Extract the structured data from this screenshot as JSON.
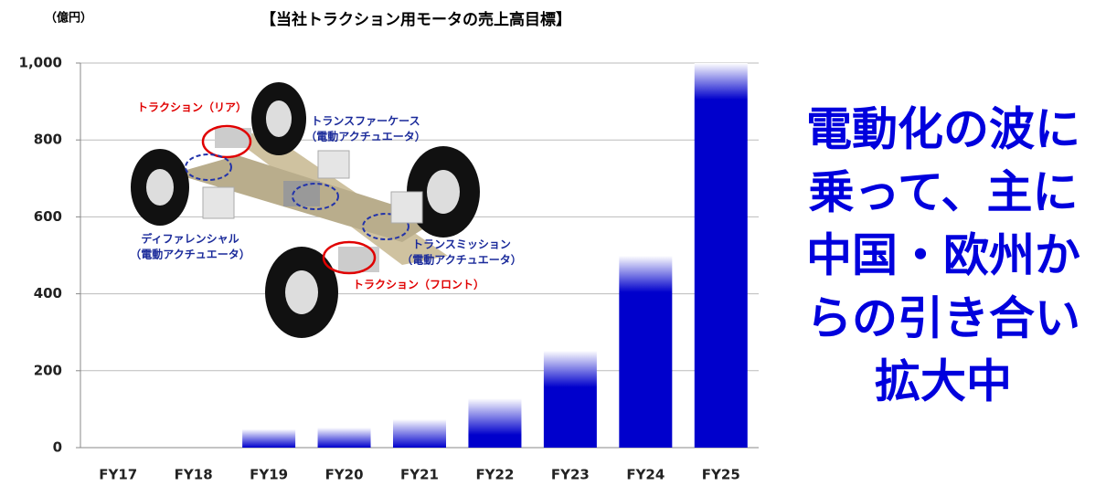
{
  "chart_data": {
    "type": "bar",
    "title": "【当社トラクション用モータの売上高目標】",
    "y_unit_label": "（億円）",
    "categories": [
      "FY17",
      "FY18",
      "FY19",
      "FY20",
      "FY21",
      "FY22",
      "FY23",
      "FY24",
      "FY25"
    ],
    "values": [
      0,
      0,
      48,
      52,
      74,
      128,
      252,
      499,
      1000
    ],
    "color": "#0000cc",
    "ylim": [
      0,
      1000
    ],
    "yticks": [
      0,
      200,
      400,
      600,
      800,
      {
        "value": 1000,
        "label": "1,000"
      }
    ],
    "grid": true,
    "annotation_lines": [
      "電動化の波に",
      "乗って、主に",
      "中国・欧州か",
      "らの引き合い",
      "拡大中"
    ],
    "annotation_color": "#0000dd",
    "diagram_labels": [
      {
        "lines": [
          "トラクション（リア）"
        ],
        "color": "#e00000"
      },
      {
        "lines": [
          "トランスファーケース",
          "（電動アクチュエータ）"
        ],
        "color": "#1a2a9a"
      },
      {
        "lines": [
          "ディファレンシャル",
          "（電動アクチュエータ）"
        ],
        "color": "#1a2a9a"
      },
      {
        "lines": [
          "トランスミッション",
          "（電動アクチュエータ）"
        ],
        "color": "#1a2a9a"
      },
      {
        "lines": [
          "トラクション（フロント）"
        ],
        "color": "#e00000"
      }
    ]
  }
}
